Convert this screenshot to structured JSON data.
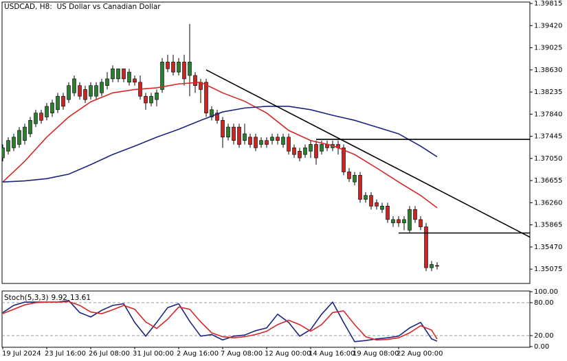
{
  "chart_data": [
    {
      "type": "candlestick",
      "title": "USDCAD, H8:  US Dollar vs Canadian Dollar",
      "categories": [
        "19 Jul 2024",
        null,
        null,
        null,
        null,
        null,
        null,
        null,
        "23 Jul 16:00",
        null,
        null,
        null,
        null,
        null,
        null,
        null,
        "26 Jul 08:00",
        null,
        null,
        null,
        null,
        null,
        null,
        null,
        "31 Jul 00:00",
        null,
        null,
        null,
        null,
        null,
        null,
        null,
        "2 Aug 16:00",
        null,
        null,
        null,
        null,
        null,
        null,
        null,
        "7 Aug 08:00",
        null,
        null,
        null,
        null,
        null,
        null,
        null,
        "12 Aug 00:00",
        null,
        null,
        null,
        null,
        null,
        null,
        null,
        "14 Aug 16:00",
        null,
        null,
        null,
        null,
        null,
        null,
        null,
        "19 Aug 08:00",
        null,
        null,
        null,
        null,
        null,
        null,
        null,
        "22 Aug 00:00",
        null,
        null,
        null,
        null,
        null,
        null,
        null
      ],
      "open": [
        1.3706,
        1.3718,
        1.3724,
        1.373,
        1.3737,
        1.3749,
        1.3767,
        1.3786,
        1.3779,
        1.3786,
        1.3792,
        1.3816,
        1.381,
        1.3822,
        1.3835,
        1.3828,
        1.3816,
        1.3816,
        1.3822,
        1.3835,
        1.3847,
        1.3847,
        1.3865,
        1.3841,
        1.3847,
        1.3841,
        1.3816,
        1.3804,
        1.381,
        1.3828,
        1.3877,
        1.3877,
        1.3859,
        1.3877,
        1.3853,
        1.3853,
        1.3841,
        1.3841,
        1.3779,
        1.3786,
        1.3773,
        1.3743,
        1.3761,
        1.3761,
        1.3737,
        1.3743,
        1.3743,
        1.373,
        1.3737,
        1.3737,
        1.3743,
        1.373,
        1.3743,
        1.3724,
        1.3718,
        1.3712,
        1.3718,
        1.373,
        1.3718,
        1.373,
        1.3724,
        1.373,
        1.3724,
        1.3681,
        1.3663,
        1.3675,
        1.3632,
        1.3639,
        1.3626,
        1.3614,
        1.362,
        1.359,
        1.3596,
        1.359,
        1.3577,
        1.3614,
        1.3596,
        1.3583,
        1.351,
        1.3514
      ],
      "high": [
        1.373,
        1.3743,
        1.3749,
        1.3761,
        1.3767,
        1.3779,
        1.3792,
        1.3792,
        1.3804,
        1.381,
        1.3822,
        1.3822,
        1.3841,
        1.3853,
        1.3841,
        1.3835,
        1.3841,
        1.3841,
        1.3847,
        1.3859,
        1.3871,
        1.3865,
        1.3865,
        1.3865,
        1.3853,
        1.3853,
        1.3822,
        1.3822,
        1.3828,
        1.3884,
        1.389,
        1.389,
        1.3884,
        1.389,
        1.3945,
        1.3859,
        1.3847,
        1.3847,
        1.3798,
        1.3792,
        1.3779,
        1.3767,
        1.3767,
        1.3767,
        1.3767,
        1.3749,
        1.3749,
        1.3743,
        1.3743,
        1.3749,
        1.3749,
        1.3749,
        1.3749,
        1.373,
        1.3724,
        1.373,
        1.3737,
        1.3737,
        1.3737,
        1.3737,
        1.3737,
        1.3737,
        1.373,
        1.3688,
        1.3681,
        1.3681,
        1.3645,
        1.3645,
        1.3632,
        1.3626,
        1.3626,
        1.3602,
        1.3602,
        1.3602,
        1.362,
        1.362,
        1.3602,
        1.359,
        1.3522,
        1.352
      ],
      "low": [
        1.37,
        1.3712,
        1.3718,
        1.3724,
        1.373,
        1.3743,
        1.3761,
        1.3767,
        1.3773,
        1.3779,
        1.3786,
        1.3792,
        1.3804,
        1.3816,
        1.381,
        1.3804,
        1.381,
        1.381,
        1.3816,
        1.3828,
        1.3841,
        1.3841,
        1.3841,
        1.3835,
        1.3835,
        1.381,
        1.3792,
        1.3798,
        1.3798,
        1.3822,
        1.3859,
        1.3853,
        1.3853,
        1.3835,
        1.3816,
        1.3822,
        1.3804,
        1.3779,
        1.3773,
        1.3767,
        1.3724,
        1.3737,
        1.373,
        1.3724,
        1.373,
        1.3724,
        1.3718,
        1.3724,
        1.3724,
        1.373,
        1.373,
        1.3724,
        1.3712,
        1.3706,
        1.37,
        1.3706,
        1.3706,
        1.3694,
        1.3712,
        1.3718,
        1.3718,
        1.3712,
        1.3675,
        1.3663,
        1.3657,
        1.3626,
        1.3626,
        1.3614,
        1.3614,
        1.3608,
        1.359,
        1.3583,
        1.3583,
        1.3577,
        1.3571,
        1.359,
        1.3577,
        1.3504,
        1.3504,
        1.3507
      ],
      "close": [
        1.3724,
        1.3737,
        1.3743,
        1.3755,
        1.3761,
        1.3773,
        1.3786,
        1.3773,
        1.3798,
        1.3804,
        1.3816,
        1.3798,
        1.3835,
        1.3847,
        1.3816,
        1.381,
        1.3835,
        1.3835,
        1.3841,
        1.3847,
        1.3865,
        1.3865,
        1.3847,
        1.3859,
        1.3841,
        1.3816,
        1.3804,
        1.3816,
        1.3822,
        1.3877,
        1.3865,
        1.3859,
        1.3877,
        1.3847,
        1.3877,
        1.3835,
        1.3828,
        1.3786,
        1.3792,
        1.3773,
        1.3743,
        1.3761,
        1.3737,
        1.373,
        1.3749,
        1.373,
        1.3724,
        1.3737,
        1.373,
        1.3743,
        1.3737,
        1.3743,
        1.3718,
        1.3712,
        1.3706,
        1.3724,
        1.373,
        1.3706,
        1.373,
        1.3724,
        1.373,
        1.3724,
        1.3681,
        1.3669,
        1.3675,
        1.3632,
        1.3639,
        1.362,
        1.362,
        1.362,
        1.3596,
        1.3596,
        1.359,
        1.3596,
        1.3614,
        1.3596,
        1.3583,
        1.351,
        1.3516,
        1.3513
      ],
      "up_color": "#2e7d32",
      "down_color": "#c62828",
      "ylim": [
        1.3482,
        1.3984
      ],
      "yticks": [
        1.39815,
        {
          "value": 1.3942,
          "label": "1.39420"
        },
        1.39025,
        {
          "value": 1.3863,
          "label": "1.38630"
        },
        1.38235,
        {
          "value": 1.3784,
          "label": "1.37840"
        },
        1.37445,
        {
          "value": 1.3705,
          "label": "1.37050"
        },
        1.36655,
        {
          "value": 1.3626,
          "label": "1.36260"
        },
        1.35865,
        {
          "value": 1.3547,
          "label": "1.35470"
        },
        1.35075
      ],
      "series": [
        {
          "color": "#d62728",
          "x": [
            0,
            4,
            8,
            12,
            16,
            20,
            24,
            28,
            32,
            36,
            40,
            44,
            48,
            52,
            56,
            60,
            64,
            68,
            72,
            76,
            79
          ],
          "values": [
            1.3663,
            1.37,
            1.3743,
            1.3779,
            1.3806,
            1.3822,
            1.3828,
            1.3831,
            1.3838,
            1.3841,
            1.3822,
            1.3807,
            1.3786,
            1.3755,
            1.3737,
            1.3728,
            1.3712,
            1.3688,
            1.3663,
            1.3639,
            1.3617
          ]
        },
        {
          "color": "#1a237e",
          "x": [
            0,
            4,
            8,
            12,
            16,
            20,
            24,
            28,
            32,
            36,
            40,
            44,
            48,
            52,
            56,
            60,
            64,
            68,
            72,
            76,
            79
          ],
          "values": [
            1.3663,
            1.3665,
            1.3669,
            1.3677,
            1.3694,
            1.3712,
            1.3727,
            1.3743,
            1.3757,
            1.3773,
            1.3788,
            1.3795,
            1.3798,
            1.3798,
            1.3792,
            1.3782,
            1.3773,
            1.3761,
            1.3749,
            1.3727,
            1.3708
          ]
        }
      ],
      "lines": [
        {
          "color": "#000000",
          "x": [
            37,
            96
          ],
          "values": [
            1.3863,
            1.3564
          ]
        },
        {
          "color": "#000000",
          "x": [
            57,
            96
          ],
          "values": [
            1.3739,
            1.3739
          ]
        },
        {
          "color": "#000000",
          "x": [
            72,
            96
          ],
          "values": [
            1.3572,
            1.3572
          ]
        }
      ]
    },
    {
      "type": "line",
      "title": "Stoch(5,3,3)",
      "main_value": 9.92,
      "signal_value": 13.61,
      "ylim": [
        0,
        100
      ],
      "yticks": [
        {
          "value": 100,
          "label": "100.00"
        },
        {
          "value": 80,
          "label": "80.00"
        },
        {
          "value": 20,
          "label": "20.00"
        },
        {
          "value": 0,
          "label": "0.00"
        }
      ],
      "x": [
        0,
        2,
        4,
        6,
        8,
        10,
        12,
        14,
        16,
        18,
        20,
        22,
        24,
        26,
        28,
        30,
        32,
        34,
        36,
        38,
        40,
        42,
        44,
        46,
        48,
        50,
        52,
        54,
        56,
        58,
        60,
        62,
        64,
        66,
        68,
        70,
        72,
        74,
        76,
        78,
        79
      ],
      "series": [
        {
          "color": "#1a237e",
          "values": [
            62,
            75,
            81,
            81,
            81,
            81,
            84,
            62,
            54,
            66,
            75,
            78,
            44,
            19,
            44,
            71,
            78,
            46,
            19,
            22,
            12,
            19,
            21,
            29,
            34,
            59,
            44,
            19,
            31,
            59,
            81,
            44,
            9,
            11,
            14,
            16,
            19,
            34,
            44,
            14,
            9.92
          ]
        },
        {
          "color": "#d62728",
          "values": [
            60,
            68,
            76,
            80,
            81,
            81,
            82,
            75,
            63,
            60,
            67,
            75,
            68,
            45,
            33,
            50,
            72,
            68,
            45,
            25,
            18,
            16,
            18,
            22,
            28,
            40,
            48,
            40,
            28,
            40,
            62,
            65,
            40,
            18,
            12,
            13,
            16,
            25,
            38,
            30,
            13.61
          ]
        }
      ]
    }
  ]
}
